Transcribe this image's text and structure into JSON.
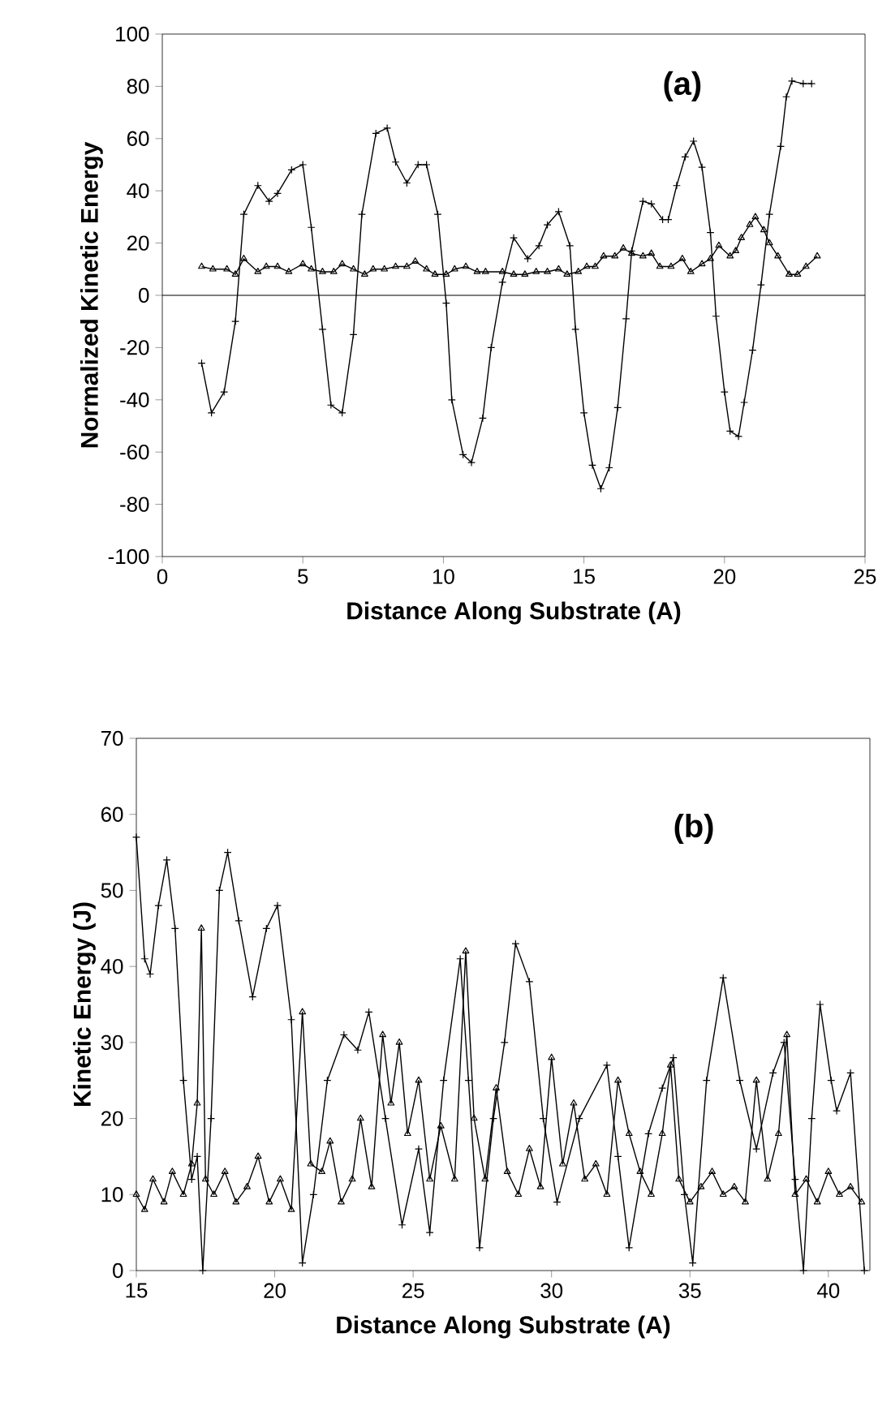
{
  "chart_data": [
    {
      "type": "line",
      "xlabel": "Distance Along Substrate (A)",
      "ylabel": "Normalized Kinetic Energy",
      "annotations": [
        "(a)"
      ],
      "xlim": [
        0,
        25
      ],
      "ylim": [
        -100,
        100
      ],
      "xticks": [
        0,
        5,
        10,
        15,
        20,
        25
      ],
      "yticks": [
        -100,
        -80,
        -60,
        -40,
        -20,
        0,
        20,
        40,
        60,
        80,
        100
      ],
      "ref_lines": [
        {
          "axis": "y",
          "value": 0
        }
      ],
      "series": [
        {
          "color": "#000000",
          "marker": "cross",
          "x": [
            1.4,
            1.75,
            2.2,
            2.6,
            2.9,
            3.4,
            3.8,
            4.1,
            4.6,
            5.0,
            5.3,
            5.7,
            6.0,
            6.4,
            6.8,
            7.1,
            7.6,
            8.0,
            8.3,
            8.7,
            9.1,
            9.4,
            9.8,
            10.1,
            10.3,
            10.7,
            11.0,
            11.4,
            11.7,
            12.1,
            12.5,
            13.0,
            13.4,
            13.7,
            14.1,
            14.5,
            14.7,
            15.0,
            15.3,
            15.6,
            15.9,
            16.2,
            16.5,
            16.7,
            17.1,
            17.4,
            17.8,
            18.0,
            18.3,
            18.6,
            18.9,
            19.2,
            19.5,
            19.7,
            20.0,
            20.2,
            20.5,
            20.7,
            21.0,
            21.3,
            21.6,
            22.0,
            22.2,
            22.4,
            22.8,
            23.1
          ],
          "values": [
            -26,
            -45,
            -37,
            -10,
            31,
            42,
            36,
            39,
            48,
            50,
            26,
            -13,
            -42,
            -45,
            -15,
            31,
            62,
            64,
            51,
            43,
            50,
            50,
            31,
            -3,
            -40,
            -61,
            -64,
            -47,
            -20,
            5,
            22,
            14,
            19,
            27,
            32,
            19,
            -13,
            -45,
            -65,
            -74,
            -66,
            -43,
            -9,
            17,
            36,
            35,
            29,
            29,
            42,
            53,
            59,
            49,
            24,
            -8,
            -37,
            -52,
            -54,
            -41,
            -21,
            4,
            31,
            57,
            76,
            82,
            81,
            81
          ]
        },
        {
          "color": "#000000",
          "marker": "triangle",
          "x": [
            1.4,
            1.8,
            2.3,
            2.6,
            2.9,
            3.4,
            3.7,
            4.1,
            4.5,
            5.0,
            5.3,
            5.7,
            6.1,
            6.4,
            6.8,
            7.2,
            7.5,
            7.9,
            8.3,
            8.7,
            9.0,
            9.4,
            9.7,
            10.1,
            10.4,
            10.8,
            11.2,
            11.5,
            12.1,
            12.5,
            12.9,
            13.3,
            13.7,
            14.1,
            14.4,
            14.8,
            15.1,
            15.4,
            15.7,
            16.1,
            16.4,
            16.7,
            17.1,
            17.4,
            17.7,
            18.1,
            18.5,
            18.8,
            19.2,
            19.5,
            19.8,
            20.2,
            20.4,
            20.6,
            20.9,
            21.1,
            21.4,
            21.6,
            21.9,
            22.3,
            22.6,
            22.9,
            23.3
          ],
          "values": [
            11,
            10,
            10,
            8,
            14,
            9,
            11,
            11,
            9,
            12,
            10,
            9,
            9,
            12,
            10,
            8,
            10,
            10,
            11,
            11,
            13,
            10,
            8,
            8,
            10,
            11,
            9,
            9,
            9,
            8,
            8,
            9,
            9,
            10,
            8,
            9,
            11,
            11,
            15,
            15,
            18,
            16,
            15,
            16,
            11,
            11,
            14,
            9,
            12,
            14,
            19,
            15,
            17,
            22,
            27,
            30,
            25,
            20,
            15,
            8,
            8,
            11,
            15
          ]
        }
      ]
    },
    {
      "type": "line",
      "xlabel": "Distance Along Substrate (A)",
      "ylabel": "Kinetic Energy (J)",
      "annotations": [
        "(b)"
      ],
      "xlim": [
        15,
        41.5
      ],
      "ylim": [
        0,
        70
      ],
      "xticks": [
        15,
        20,
        25,
        30,
        35,
        40
      ],
      "yticks": [
        0,
        10,
        20,
        30,
        40,
        50,
        60,
        70
      ],
      "series": [
        {
          "color": "#000000",
          "marker": "cross",
          "x": [
            15.0,
            15.3,
            15.5,
            15.8,
            16.1,
            16.4,
            16.7,
            17.0,
            17.2,
            17.4,
            17.7,
            18.0,
            18.3,
            18.7,
            19.2,
            19.7,
            20.1,
            20.6,
            21.0,
            21.4,
            21.9,
            22.5,
            23.0,
            23.4,
            24.0,
            24.6,
            25.2,
            25.6,
            26.1,
            26.7,
            27.0,
            27.4,
            27.9,
            28.3,
            28.7,
            29.2,
            29.7,
            30.2,
            31.0,
            32.0,
            32.4,
            32.8,
            33.5,
            34.0,
            34.4,
            34.8,
            35.1,
            35.6,
            36.2,
            36.8,
            37.4,
            38.0,
            38.4,
            38.8,
            39.1,
            39.4,
            39.7,
            40.1,
            40.3,
            40.8,
            41.3
          ],
          "values": [
            57,
            41,
            39,
            48,
            54,
            45,
            25,
            12,
            15,
            0,
            20,
            50,
            55,
            46,
            36,
            45,
            48,
            33,
            1,
            10,
            25,
            31,
            29,
            34,
            20,
            6,
            16,
            5,
            25,
            41,
            25,
            3,
            20,
            30,
            43,
            38,
            20,
            9,
            20,
            27,
            15,
            3,
            18,
            24,
            28,
            10,
            1,
            25,
            38.5,
            25,
            16,
            26,
            30,
            12,
            0,
            20,
            35,
            25,
            21,
            26,
            0
          ]
        },
        {
          "color": "#000000",
          "marker": "triangle",
          "x": [
            15.0,
            15.3,
            15.6,
            16.0,
            16.3,
            16.7,
            17.0,
            17.2,
            17.35,
            17.5,
            17.8,
            18.2,
            18.6,
            19.0,
            19.4,
            19.8,
            20.2,
            20.6,
            21.0,
            21.3,
            21.7,
            22.0,
            22.4,
            22.8,
            23.1,
            23.5,
            23.9,
            24.2,
            24.5,
            24.8,
            25.2,
            25.6,
            26.0,
            26.5,
            26.9,
            27.2,
            27.6,
            28.0,
            28.4,
            28.8,
            29.2,
            29.6,
            30.0,
            30.4,
            30.8,
            31.2,
            31.6,
            32.0,
            32.4,
            32.8,
            33.2,
            33.6,
            34.0,
            34.3,
            34.6,
            35.0,
            35.4,
            35.8,
            36.2,
            36.6,
            37.0,
            37.4,
            37.8,
            38.2,
            38.5,
            38.8,
            39.2,
            39.6,
            40.0,
            40.4,
            40.8,
            41.2
          ],
          "values": [
            10,
            8,
            12,
            9,
            13,
            10,
            14,
            22,
            45,
            12,
            10,
            13,
            9,
            11,
            15,
            9,
            12,
            8,
            34,
            14,
            13,
            17,
            9,
            12,
            20,
            11,
            31,
            22,
            30,
            18,
            25,
            12,
            19,
            12,
            42,
            20,
            12,
            24,
            13,
            10,
            16,
            11,
            28,
            14,
            22,
            12,
            14,
            10,
            25,
            18,
            13,
            10,
            18,
            27,
            12,
            9,
            11,
            13,
            10,
            11,
            9,
            25,
            12,
            18,
            31,
            10,
            12,
            9,
            13,
            10,
            11,
            9
          ]
        }
      ]
    }
  ]
}
